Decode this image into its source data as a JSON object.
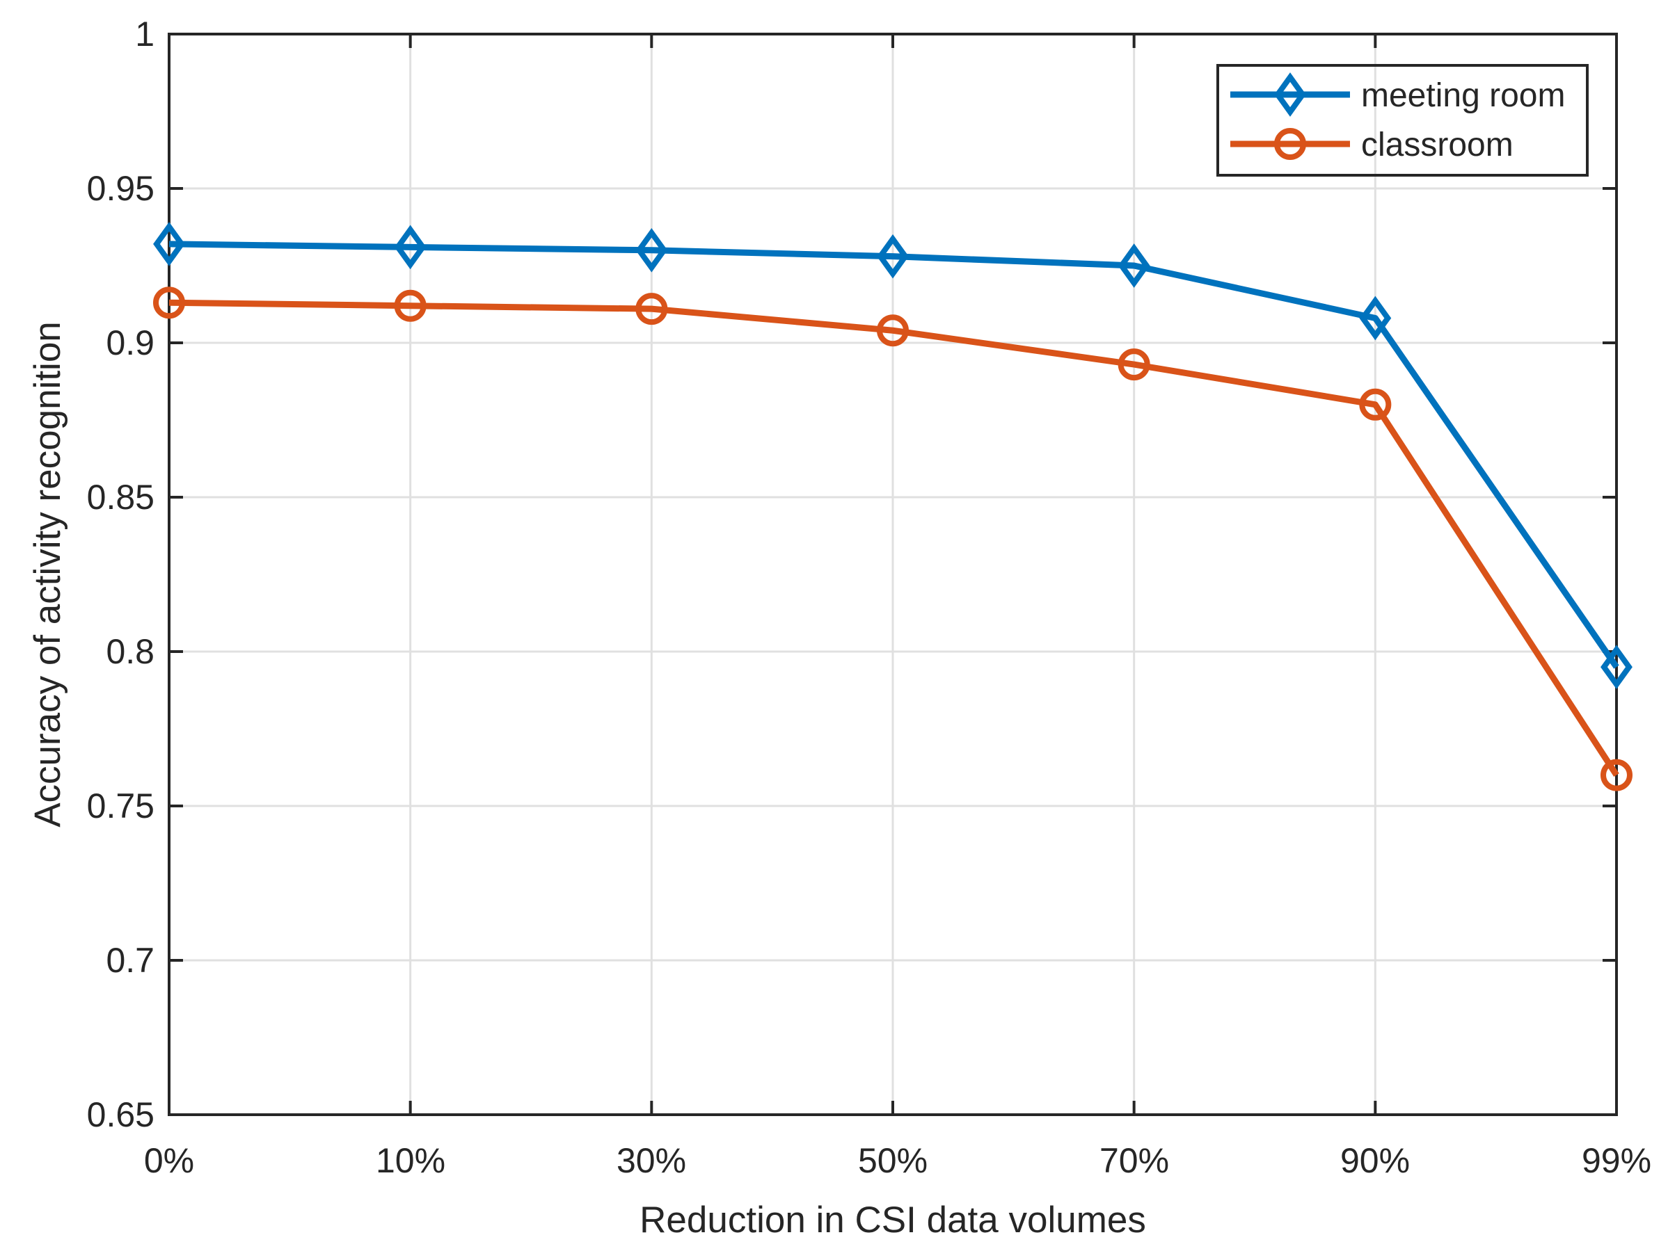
{
  "figure": {
    "background": "#ffffff",
    "axis_color": "#262626",
    "grid_color": "#e0e0e0",
    "legend_border_color": "#262626"
  },
  "chart_data": {
    "type": "line",
    "title": "",
    "xlabel": "Reduction in CSI data volumes",
    "ylabel": "Accuracy of activity recognition",
    "categories": [
      "0%",
      "10%",
      "30%",
      "50%",
      "70%",
      "90%",
      "99%"
    ],
    "ytick_labels": [
      "1",
      "0.95",
      "0.9",
      "0.85",
      "0.8",
      "0.75",
      "0.7",
      "0.65"
    ],
    "ytick_values": [
      1,
      0.95,
      0.9,
      0.85,
      0.8,
      0.75,
      0.7,
      0.65
    ],
    "ylim": [
      0.65,
      1.0
    ],
    "grid": true,
    "legend_position": "top-right",
    "series": [
      {
        "name": "meeting room",
        "color": "#0072BD",
        "marker": "diamond",
        "values": [
          0.932,
          0.931,
          0.93,
          0.928,
          0.925,
          0.908,
          0.795
        ]
      },
      {
        "name": "classroom",
        "color": "#D95319",
        "marker": "circle",
        "values": [
          0.913,
          0.912,
          0.911,
          0.904,
          0.893,
          0.88,
          0.76
        ]
      }
    ]
  }
}
